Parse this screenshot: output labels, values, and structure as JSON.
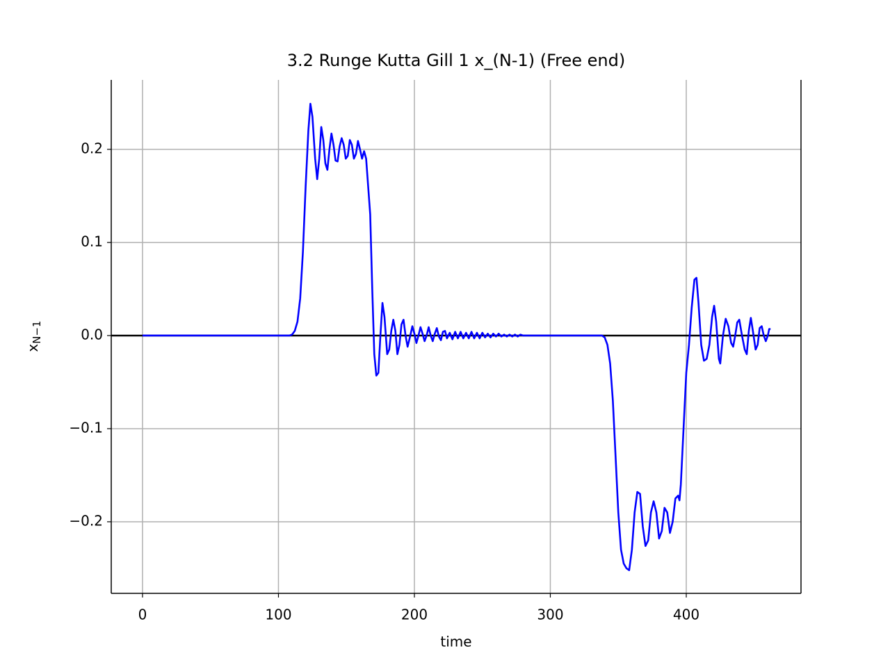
{
  "chart_data": {
    "type": "line",
    "title": "3.2 Runge Kutta Gill 1 x_(N-1) (Free end)",
    "xlabel": "time",
    "ylabel": "x",
    "ylabel_subscript": "N−1",
    "xlim": [
      -23,
      484.4
    ],
    "ylim": [
      -0.2769,
      0.2746
    ],
    "xticks": [
      0,
      100,
      200,
      300,
      400
    ],
    "yticks": [
      {
        "value": -0.2,
        "label": "−0.2"
      },
      {
        "value": -0.1,
        "label": "−0.1"
      },
      {
        "value": 0,
        "label": "0.0"
      },
      0.1,
      0.2
    ],
    "grid": true,
    "hline": 0,
    "series": [
      {
        "name": "x_(N-1)",
        "color": "#0000ff",
        "x": [
          0,
          108,
          110,
          112,
          114,
          116,
          118,
          120,
          122,
          123.5,
          125,
          127,
          128.5,
          130,
          131.5,
          133,
          134.5,
          136,
          137.5,
          139,
          140.5,
          142,
          143.5,
          145,
          146.5,
          148,
          149.5,
          151,
          152.5,
          154,
          155.5,
          157,
          158.5,
          160,
          161.5,
          163,
          164.5,
          166,
          167.5,
          169,
          170.5,
          172,
          173.5,
          175,
          176.5,
          178,
          180,
          181.5,
          183,
          184.5,
          186,
          187.5,
          189,
          190.5,
          192,
          193.5,
          195,
          197,
          198.5,
          200,
          201.5,
          203,
          204.5,
          206,
          207.5,
          209,
          210.5,
          212,
          213.5,
          215,
          216.5,
          218,
          219.5,
          221,
          222.5,
          224,
          226,
          228,
          230,
          232,
          234,
          236,
          238,
          240,
          242,
          244,
          246,
          248,
          250,
          252,
          254,
          256,
          258,
          260,
          262,
          264,
          266,
          268,
          270,
          272,
          274,
          276,
          278,
          280,
          338,
          340,
          342,
          344,
          346,
          348,
          350,
          352,
          354,
          356,
          358,
          360,
          362,
          364,
          366,
          368,
          370,
          372,
          374,
          376,
          378,
          380,
          382,
          384,
          386,
          388,
          390,
          392,
          394,
          395,
          396,
          398,
          400,
          402,
          404,
          406,
          407.5,
          409,
          411,
          413,
          415,
          417,
          419,
          420.5,
          422,
          424,
          425,
          427,
          429,
          431,
          433,
          434.5,
          436,
          437.5,
          439,
          441,
          443,
          444.5,
          446,
          447.5,
          449,
          451,
          452.5,
          454,
          455.5,
          457,
          458.5,
          460,
          461,
          462
        ],
        "values": [
          0,
          0,
          0.001,
          0.005,
          0.015,
          0.04,
          0.09,
          0.16,
          0.22,
          0.249,
          0.235,
          0.19,
          0.168,
          0.19,
          0.224,
          0.21,
          0.185,
          0.178,
          0.2,
          0.217,
          0.205,
          0.188,
          0.187,
          0.203,
          0.212,
          0.205,
          0.19,
          0.193,
          0.21,
          0.205,
          0.19,
          0.195,
          0.209,
          0.2,
          0.19,
          0.198,
          0.19,
          0.16,
          0.13,
          0.05,
          -0.02,
          -0.043,
          -0.04,
          0,
          0.035,
          0.02,
          -0.02,
          -0.015,
          0.005,
          0.017,
          0.005,
          -0.02,
          -0.01,
          0.012,
          0.017,
          0,
          -0.012,
          0,
          0.01,
          0.002,
          -0.008,
          0,
          0.009,
          0.002,
          -0.006,
          0,
          0.009,
          0,
          -0.006,
          0.002,
          0.008,
          -0.001,
          -0.005,
          0.004,
          0.005,
          -0.003,
          0.003,
          -0.004,
          0.004,
          -0.003,
          0.004,
          -0.003,
          0.003,
          -0.003,
          0.004,
          -0.003,
          0.003,
          -0.003,
          0.003,
          -0.002,
          0.002,
          -0.002,
          0.002,
          -0.001,
          0.002,
          -0.001,
          0.001,
          -0.001,
          0.001,
          -0.001,
          0.001,
          -0.001,
          0.001,
          0,
          0,
          -0.002,
          -0.01,
          -0.03,
          -0.07,
          -0.13,
          -0.19,
          -0.23,
          -0.245,
          -0.25,
          -0.252,
          -0.23,
          -0.19,
          -0.168,
          -0.17,
          -0.205,
          -0.226,
          -0.22,
          -0.19,
          -0.178,
          -0.19,
          -0.218,
          -0.21,
          -0.185,
          -0.19,
          -0.212,
          -0.2,
          -0.175,
          -0.172,
          -0.177,
          -0.16,
          -0.1,
          -0.04,
          -0.01,
          0.03,
          0.06,
          0.062,
          0.035,
          -0.01,
          -0.027,
          -0.025,
          -0.01,
          0.02,
          0.032,
          0.015,
          -0.025,
          -0.03,
          0,
          0.018,
          0.01,
          -0.008,
          -0.012,
          0,
          0.014,
          0.017,
          0,
          -0.015,
          -0.02,
          0.005,
          0.019,
          0.005,
          -0.015,
          -0.01,
          0.008,
          0.01,
          0,
          -0.006,
          0,
          0.007,
          0.007
        ]
      }
    ]
  }
}
